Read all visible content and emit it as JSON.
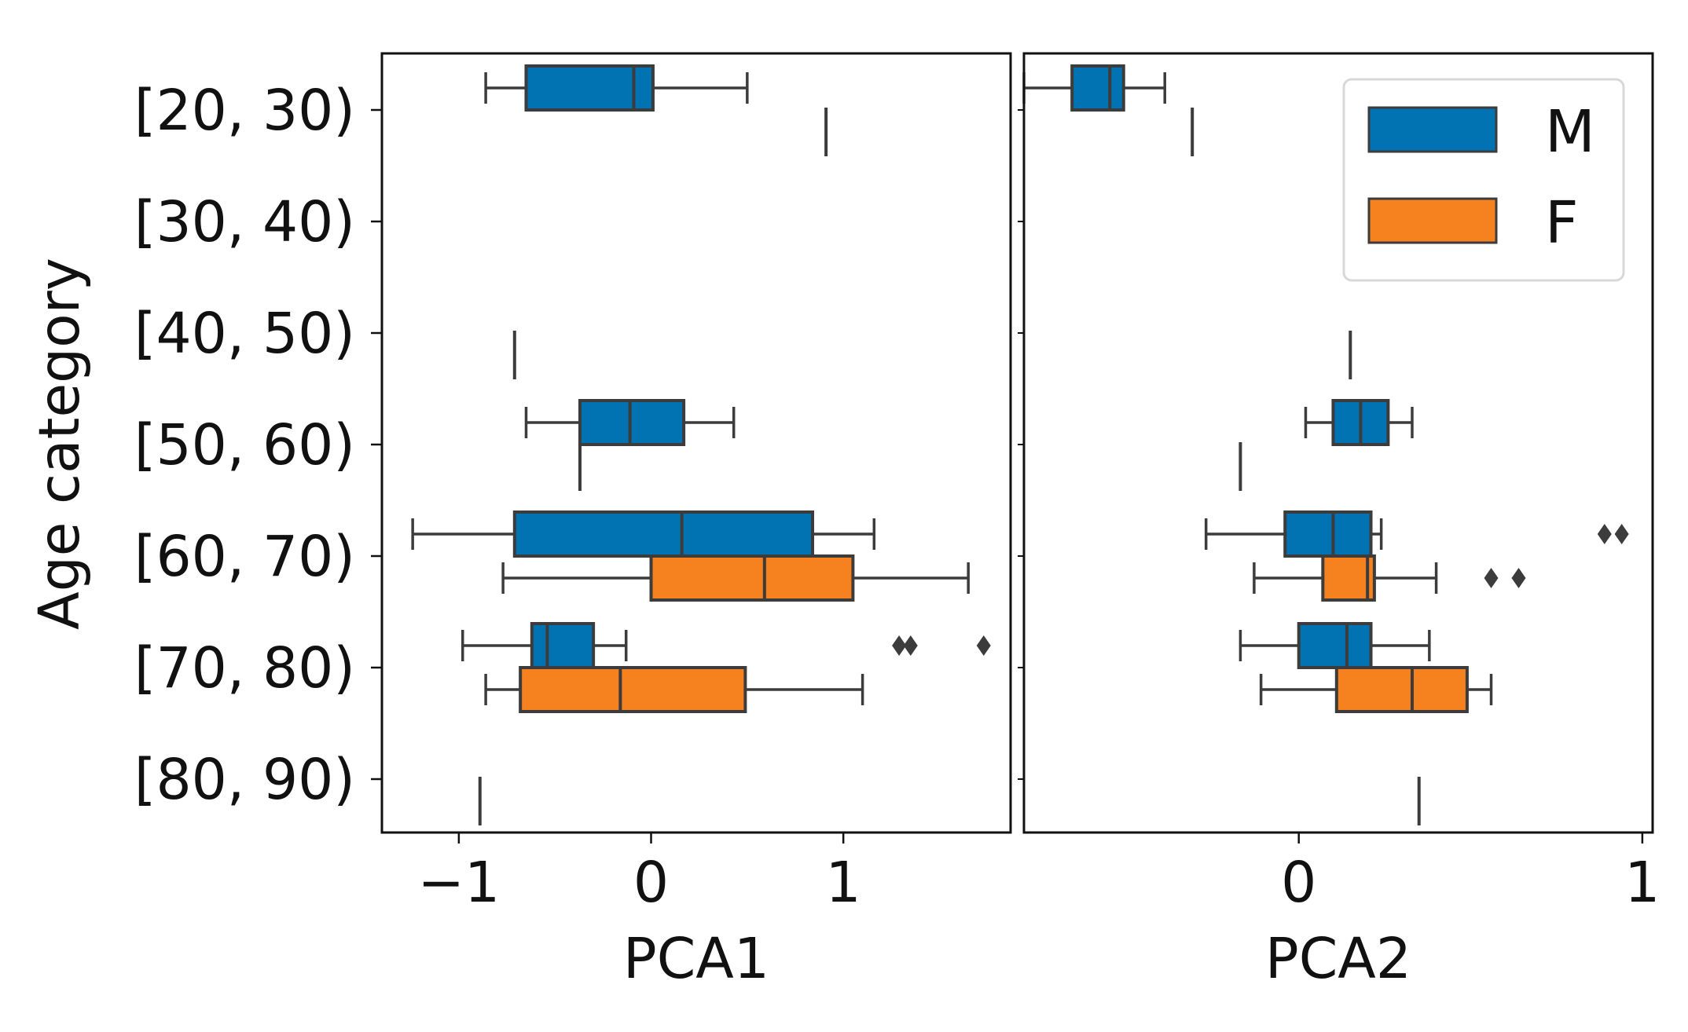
{
  "chart_data": {
    "type": "boxplot",
    "orientation": "horizontal",
    "title": "",
    "ylabel": "Age category",
    "categories": [
      "[20, 30)",
      "[30, 40)",
      "[40, 50)",
      "[50, 60)",
      "[60, 70)",
      "[70, 80)",
      "[80, 90)"
    ],
    "legend": {
      "placement": "top-right",
      "entries": [
        {
          "name": "M",
          "color": "#0173b2"
        },
        {
          "name": "F",
          "color": "#f5821f"
        }
      ]
    },
    "edge_color": "#3c3c3c",
    "panels": [
      {
        "name": "PCA1",
        "xlabel": "PCA1",
        "xlim": [
          -1.4,
          1.87
        ],
        "xticks": [
          -1,
          0,
          1
        ],
        "xtick_labels": [
          "−1",
          "0",
          "1"
        ],
        "series": [
          {
            "name": "M",
            "boxes": [
              {
                "category": "[20, 30)",
                "whislo": -0.86,
                "q1": -0.65,
                "med": -0.09,
                "q3": 0.01,
                "whishi": 0.5,
                "fliers": []
              },
              {
                "category": "[50, 60)",
                "whislo": -0.65,
                "q1": -0.37,
                "med": -0.11,
                "q3": 0.17,
                "whishi": 0.43,
                "fliers": []
              },
              {
                "category": "[60, 70)",
                "whislo": -1.24,
                "q1": -0.71,
                "med": 0.16,
                "q3": 0.84,
                "whishi": 1.16,
                "fliers": []
              },
              {
                "category": "[70, 80)",
                "whislo": -0.98,
                "q1": -0.62,
                "med": -0.54,
                "q3": -0.3,
                "whishi": -0.13,
                "fliers": [
                  1.29,
                  1.35,
                  1.73
                ]
              }
            ]
          },
          {
            "name": "F",
            "boxes": [
              {
                "category": "[20, 30)",
                "whislo": 0.91,
                "q1": 0.91,
                "med": 0.91,
                "q3": 0.91,
                "whishi": 0.91,
                "fliers": []
              },
              {
                "category": "[40, 50)",
                "whislo": -0.71,
                "q1": -0.71,
                "med": -0.71,
                "q3": -0.71,
                "whishi": -0.71,
                "fliers": []
              },
              {
                "category": "[50, 60)",
                "whislo": -0.37,
                "q1": -0.37,
                "med": -0.37,
                "q3": -0.37,
                "whishi": -0.37,
                "fliers": []
              },
              {
                "category": "[60, 70)",
                "whislo": -0.77,
                "q1": 0.0,
                "med": 0.59,
                "q3": 1.05,
                "whishi": 1.65,
                "fliers": []
              },
              {
                "category": "[70, 80)",
                "whislo": -0.86,
                "q1": -0.68,
                "med": -0.16,
                "q3": 0.49,
                "whishi": 1.1,
                "fliers": []
              },
              {
                "category": "[80, 90)",
                "whislo": -0.89,
                "q1": -0.89,
                "med": -0.89,
                "q3": -0.89,
                "whishi": -0.89,
                "fliers": []
              }
            ]
          }
        ]
      },
      {
        "name": "PCA2",
        "xlabel": "PCA2",
        "xlim": [
          -0.8,
          1.03
        ],
        "xticks": [
          0,
          1
        ],
        "xtick_labels": [
          "0",
          "1"
        ],
        "series": [
          {
            "name": "M",
            "boxes": [
              {
                "category": "[20, 30)",
                "whislo": -0.8,
                "q1": -0.66,
                "med": -0.55,
                "q3": -0.51,
                "whishi": -0.39,
                "fliers": []
              },
              {
                "category": "[50, 60)",
                "whislo": 0.02,
                "q1": 0.1,
                "med": 0.18,
                "q3": 0.26,
                "whishi": 0.33,
                "fliers": []
              },
              {
                "category": "[60, 70)",
                "whislo": -0.27,
                "q1": -0.04,
                "med": 0.1,
                "q3": 0.21,
                "whishi": 0.24,
                "fliers": [
                  0.89,
                  0.94
                ]
              },
              {
                "category": "[70, 80)",
                "whislo": -0.17,
                "q1": 0.0,
                "med": 0.14,
                "q3": 0.21,
                "whishi": 0.38,
                "fliers": []
              }
            ]
          },
          {
            "name": "F",
            "boxes": [
              {
                "category": "[20, 30)",
                "whislo": -0.31,
                "q1": -0.31,
                "med": -0.31,
                "q3": -0.31,
                "whishi": -0.31,
                "fliers": []
              },
              {
                "category": "[40, 50)",
                "whislo": 0.15,
                "q1": 0.15,
                "med": 0.15,
                "q3": 0.15,
                "whishi": 0.15,
                "fliers": []
              },
              {
                "category": "[50, 60)",
                "whislo": -0.17,
                "q1": -0.17,
                "med": -0.17,
                "q3": -0.17,
                "whishi": -0.17,
                "fliers": []
              },
              {
                "category": "[60, 70)",
                "whislo": -0.13,
                "q1": 0.07,
                "med": 0.2,
                "q3": 0.22,
                "whishi": 0.4,
                "fliers": [
                  0.56,
                  0.64
                ]
              },
              {
                "category": "[70, 80)",
                "whislo": -0.11,
                "q1": 0.11,
                "med": 0.33,
                "q3": 0.49,
                "whishi": 0.56,
                "fliers": []
              },
              {
                "category": "[80, 90)",
                "whislo": 0.35,
                "q1": 0.35,
                "med": 0.35,
                "q3": 0.35,
                "whishi": 0.35,
                "fliers": []
              }
            ]
          }
        ]
      }
    ]
  }
}
